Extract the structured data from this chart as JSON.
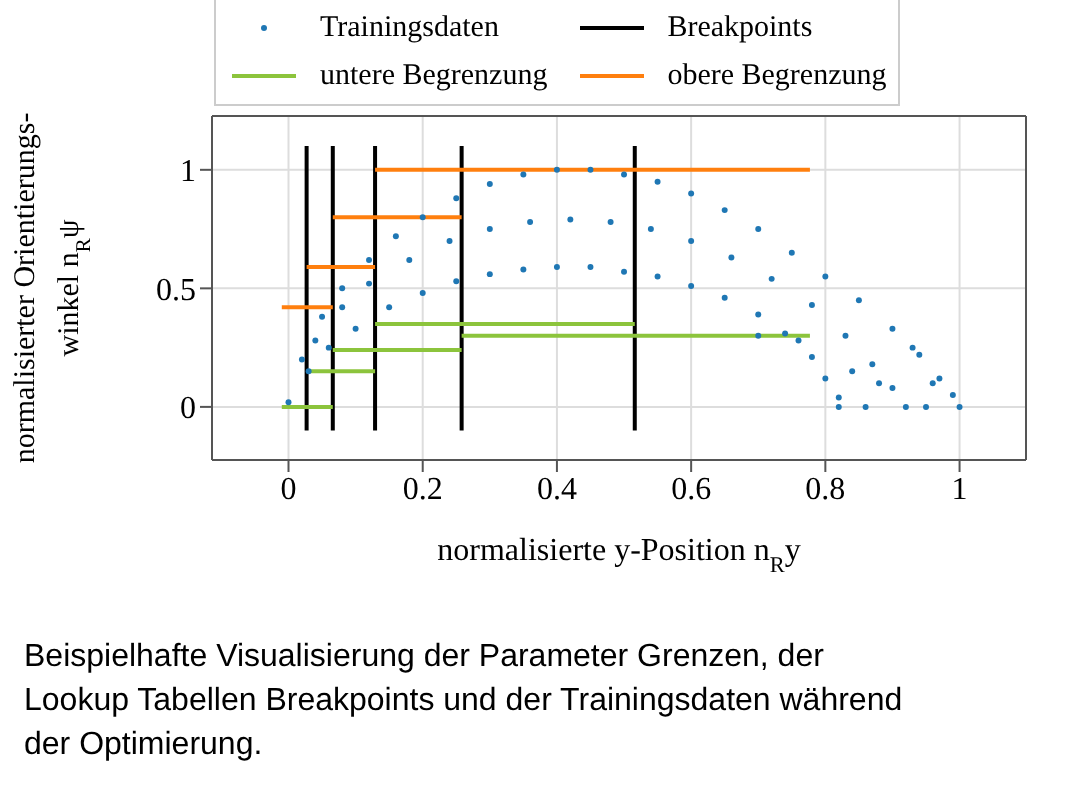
{
  "chart_data": {
    "type": "scatter",
    "xlabel": "normalisierte y-Position n$_{R}$y",
    "ylabel": "normalisierter Orientierungs-\nwinkel n$_{R}$ψ",
    "xlim": [
      -0.114,
      1.099
    ],
    "ylim": [
      -0.224,
      1.227
    ],
    "xticks": [
      0,
      0.2,
      0.4,
      0.6,
      0.8,
      1
    ],
    "yticks": [
      0,
      0.5,
      1
    ],
    "grid": true,
    "legend": "top",
    "annotations": [
      "Beispielhafte Visualisierung der Parameter Grenzen, der Lookup Tabellen Breakpoints und der Trainingsdaten während der Optimierung."
    ],
    "series": [
      {
        "name": "Trainingsdaten",
        "marker": "circle",
        "color": "#1f77b4",
        "x": [
          0.0,
          0.02,
          0.05,
          0.08,
          0.12,
          0.16,
          0.2,
          0.25,
          0.3,
          0.35,
          0.4,
          0.45,
          0.5,
          0.55,
          0.6,
          0.65,
          0.7,
          0.75,
          0.8,
          0.85,
          0.9,
          0.94,
          0.97,
          0.99,
          1.0,
          0.03,
          0.06,
          0.1,
          0.15,
          0.2,
          0.25,
          0.3,
          0.35,
          0.4,
          0.45,
          0.5,
          0.55,
          0.6,
          0.65,
          0.7,
          0.74,
          0.78,
          0.8,
          0.82,
          0.82,
          0.04,
          0.08,
          0.12,
          0.18,
          0.24,
          0.3,
          0.36,
          0.42,
          0.48,
          0.54,
          0.6,
          0.66,
          0.72,
          0.78,
          0.83,
          0.87,
          0.9,
          0.92,
          0.7,
          0.76,
          0.84,
          0.86,
          0.88,
          0.95,
          0.96,
          0.93
        ],
        "values": [
          0.02,
          0.2,
          0.38,
          0.5,
          0.62,
          0.72,
          0.8,
          0.88,
          0.94,
          0.98,
          1.0,
          1.0,
          0.98,
          0.95,
          0.9,
          0.83,
          0.75,
          0.65,
          0.55,
          0.45,
          0.33,
          0.22,
          0.12,
          0.05,
          0,
          0.15,
          0.25,
          0.33,
          0.42,
          0.48,
          0.53,
          0.56,
          0.58,
          0.59,
          0.59,
          0.57,
          0.55,
          0.51,
          0.46,
          0.39,
          0.31,
          0.21,
          0.12,
          0.04,
          0,
          0.28,
          0.42,
          0.52,
          0.62,
          0.7,
          0.75,
          0.78,
          0.79,
          0.78,
          0.75,
          0.7,
          0.63,
          0.54,
          0.43,
          0.3,
          0.18,
          0.08,
          0,
          0.3,
          0.28,
          0.15,
          0,
          0.1,
          0,
          0.1,
          0.25
        ]
      },
      {
        "name": "Breakpoints",
        "type": "line",
        "color": "#000000",
        "x": [
          0.027,
          0.027
        ],
        "values": [
          -0.1,
          1.1
        ]
      },
      {
        "type": "line",
        "color": "#000000",
        "x": [
          0.066,
          0.066
        ],
        "values": [
          -0.1,
          1.1
        ]
      },
      {
        "type": "line",
        "color": "#000000",
        "x": [
          0.129,
          0.129
        ],
        "values": [
          -0.1,
          1.1
        ]
      },
      {
        "type": "line",
        "color": "#000000",
        "x": [
          0.258,
          0.258
        ],
        "values": [
          -0.1,
          1.1
        ]
      },
      {
        "type": "line",
        "color": "#000000",
        "x": [
          0.516,
          0.516
        ],
        "values": [
          -0.1,
          1.1
        ]
      },
      {
        "name": "untere Begrenzung",
        "type": "line",
        "color": "#8cc43c",
        "x": [
          -0.01,
          0.066
        ],
        "values": [
          0,
          0
        ]
      },
      {
        "type": "line",
        "color": "#8cc43c",
        "x": [
          0.027,
          0.129
        ],
        "values": [
          0.15,
          0.15
        ]
      },
      {
        "type": "line",
        "color": "#8cc43c",
        "x": [
          0.066,
          0.258
        ],
        "values": [
          0.24,
          0.24
        ]
      },
      {
        "type": "line",
        "color": "#8cc43c",
        "x": [
          0.129,
          0.516
        ],
        "values": [
          0.35,
          0.35
        ]
      },
      {
        "type": "line",
        "color": "#8cc43c",
        "x": [
          0.258,
          0.777
        ],
        "values": [
          0.3,
          0.3
        ]
      },
      {
        "name": "obere Begrenzung",
        "type": "line",
        "color": "#ff7f0e",
        "x": [
          -0.01,
          0.066
        ],
        "values": [
          0.42,
          0.42
        ]
      },
      {
        "type": "line",
        "color": "#ff7f0e",
        "x": [
          0.027,
          0.129
        ],
        "values": [
          0.59,
          0.59
        ]
      },
      {
        "type": "line",
        "color": "#ff7f0e",
        "x": [
          0.066,
          0.258
        ],
        "values": [
          0.8,
          0.8
        ]
      },
      {
        "type": "line",
        "color": "#ff7f0e",
        "x": [
          0.129,
          0.777
        ],
        "values": [
          1.0,
          1.0
        ]
      }
    ]
  }
}
